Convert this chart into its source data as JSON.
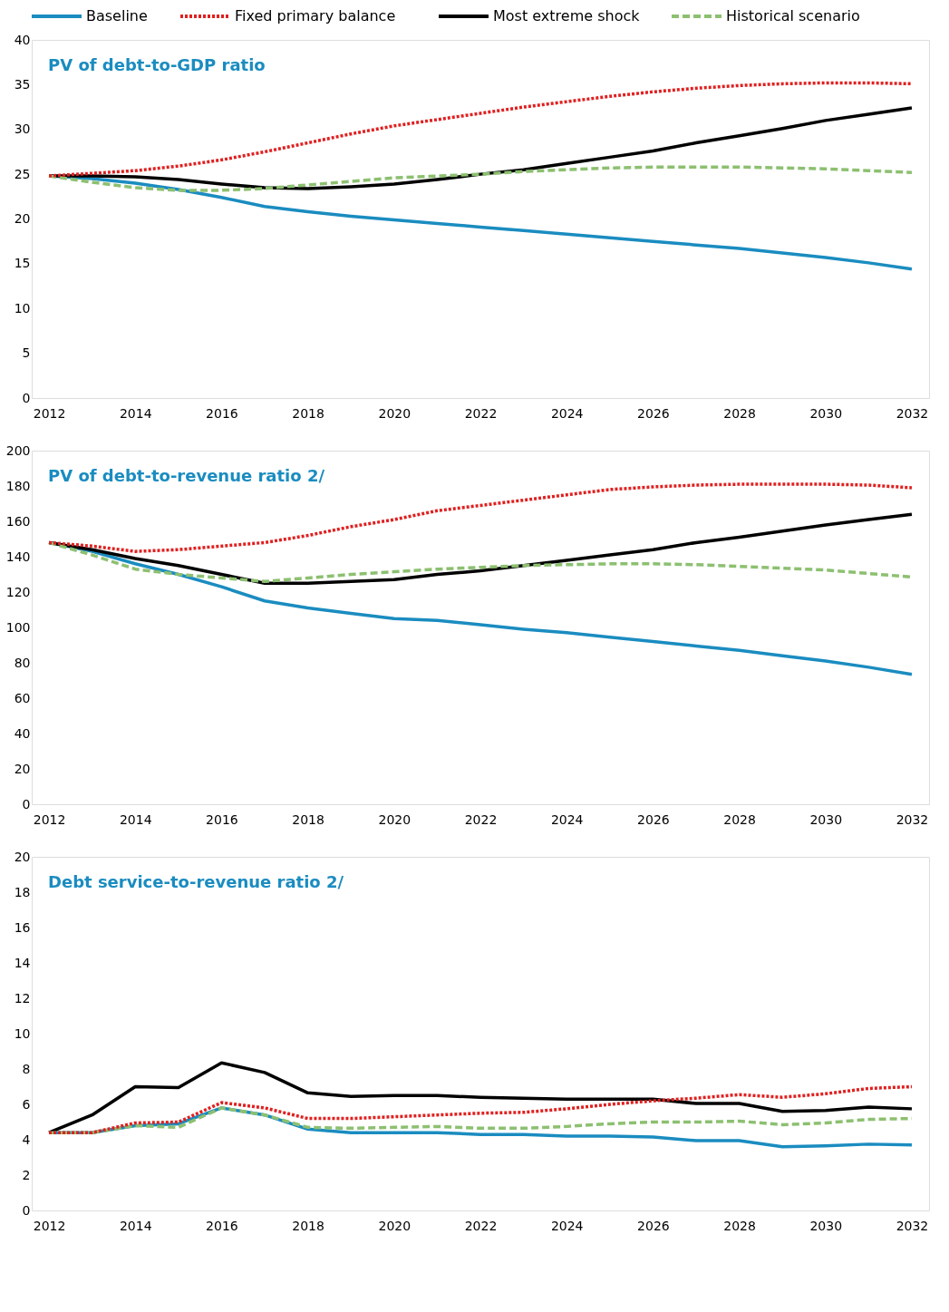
{
  "chart_data": [
    {
      "type": "line",
      "title": "PV of debt-to-GDP ratio",
      "categories": [
        "2012",
        null,
        "2014",
        null,
        "2016",
        null,
        "2018",
        null,
        "2020",
        null,
        "2022",
        null,
        "2024",
        null,
        "2026",
        null,
        "2028",
        null,
        "2030",
        null,
        "2032"
      ],
      "ylim": [
        0,
        40
      ],
      "yticks": [
        0,
        5,
        10,
        15,
        20,
        25,
        30,
        35,
        40
      ],
      "grid": false,
      "legend": "top",
      "marker": "none",
      "series": [
        {
          "name": "Baseline",
          "color": "#1a8cc0",
          "line_style": "solid",
          "values": [
            24.8,
            24.5,
            24.0,
            23.3,
            22.4,
            21.4,
            20.8,
            20.3,
            19.9,
            19.5,
            19.1,
            18.7,
            18.3,
            17.9,
            17.5,
            17.1,
            16.7,
            16.2,
            15.7,
            15.1,
            14.4
          ]
        },
        {
          "name": "Fixed primary balance",
          "color": "#e02020",
          "line_style": "dotted",
          "values": [
            24.8,
            25.1,
            25.4,
            25.9,
            26.6,
            27.5,
            28.5,
            29.5,
            30.4,
            31.1,
            31.8,
            32.5,
            33.1,
            33.7,
            34.2,
            34.6,
            34.9,
            35.1,
            35.2,
            35.2,
            35.1
          ]
        },
        {
          "name": "Most extreme shock",
          "color": "#000000",
          "line_style": "solid",
          "values": [
            24.8,
            24.8,
            24.7,
            24.4,
            23.9,
            23.5,
            23.4,
            23.6,
            23.9,
            24.4,
            25.0,
            25.5,
            26.2,
            26.9,
            27.6,
            28.5,
            29.3,
            30.1,
            31.0,
            31.7,
            32.4
          ]
        },
        {
          "name": "Historical scenario",
          "color": "#8cc070",
          "line_style": "dashed",
          "values": [
            24.8,
            24.1,
            23.5,
            23.2,
            23.2,
            23.4,
            23.8,
            24.2,
            24.6,
            24.8,
            25.0,
            25.3,
            25.5,
            25.7,
            25.8,
            25.8,
            25.8,
            25.7,
            25.6,
            25.4,
            25.2
          ]
        }
      ]
    },
    {
      "type": "line",
      "title": "PV of debt-to-revenue ratio 2/",
      "categories": [
        "2012",
        null,
        "2014",
        null,
        "2016",
        null,
        "2018",
        null,
        "2020",
        null,
        "2022",
        null,
        "2024",
        null,
        "2026",
        null,
        "2028",
        null,
        "2030",
        null,
        "2032"
      ],
      "ylim": [
        0,
        200
      ],
      "yticks": [
        0,
        20,
        40,
        60,
        80,
        100,
        120,
        140,
        160,
        180,
        200
      ],
      "grid": false,
      "legend": false,
      "marker": "none",
      "series": [
        {
          "color": "#1a8cc0",
          "line_style": "solid",
          "values": [
            148,
            143,
            136,
            130,
            123,
            115,
            111,
            108,
            105,
            104,
            101.5,
            99,
            97,
            94.5,
            92,
            89.5,
            87,
            84,
            81,
            77.5,
            73.5
          ]
        },
        {
          "color": "#e02020",
          "line_style": "dotted",
          "values": [
            148,
            146,
            143,
            144,
            146,
            148,
            152,
            157,
            161,
            166,
            169,
            172,
            175,
            178,
            179.5,
            180.5,
            181,
            181,
            181,
            180.5,
            179
          ]
        },
        {
          "color": "#000000",
          "line_style": "solid",
          "values": [
            148,
            144,
            139,
            135,
            130,
            125,
            125,
            126,
            127,
            130,
            132,
            135,
            138,
            141,
            144,
            148,
            151,
            154.5,
            158,
            161,
            164
          ]
        },
        {
          "color": "#8cc070",
          "line_style": "dashed",
          "values": [
            148,
            141,
            133,
            130,
            128,
            126,
            128,
            130,
            131.5,
            133,
            134,
            135,
            135.5,
            136,
            136,
            135.5,
            134.5,
            133.5,
            132.5,
            130.5,
            128.5
          ]
        }
      ]
    },
    {
      "type": "line",
      "title": "Debt service-to-revenue ratio 2/",
      "categories": [
        "2012",
        null,
        "2014",
        null,
        "2016",
        null,
        "2018",
        null,
        "2020",
        null,
        "2022",
        null,
        "2024",
        null,
        "2026",
        null,
        "2028",
        null,
        "2030",
        null,
        "2032"
      ],
      "ylim": [
        0,
        20
      ],
      "yticks": [
        0,
        2,
        4,
        6,
        8,
        10,
        12,
        14,
        16,
        18,
        20
      ],
      "grid": false,
      "legend": false,
      "marker": "none",
      "series": [
        {
          "color": "#1a8cc0",
          "line_style": "solid",
          "values": [
            4.4,
            4.4,
            4.8,
            4.9,
            5.8,
            5.4,
            4.6,
            4.4,
            4.4,
            4.4,
            4.3,
            4.3,
            4.2,
            4.2,
            4.15,
            3.95,
            3.95,
            3.6,
            3.65,
            3.75,
            3.7
          ]
        },
        {
          "color": "#e02020",
          "line_style": "dotted",
          "values": [
            4.4,
            4.4,
            4.95,
            5.0,
            6.1,
            5.8,
            5.2,
            5.2,
            5.3,
            5.4,
            5.5,
            5.55,
            5.75,
            6.0,
            6.2,
            6.35,
            6.55,
            6.4,
            6.6,
            6.9,
            7.0
          ]
        },
        {
          "color": "#000000",
          "line_style": "solid",
          "values": [
            4.4,
            5.4,
            7.0,
            6.95,
            8.35,
            7.8,
            6.65,
            6.45,
            6.5,
            6.5,
            6.4,
            6.35,
            6.3,
            6.3,
            6.3,
            6.05,
            6.05,
            5.6,
            5.65,
            5.85,
            5.75
          ]
        },
        {
          "color": "#8cc070",
          "line_style": "dashed",
          "values": [
            4.4,
            4.4,
            4.8,
            4.7,
            5.8,
            5.4,
            4.7,
            4.65,
            4.7,
            4.75,
            4.65,
            4.65,
            4.75,
            4.9,
            5.0,
            5.0,
            5.05,
            4.85,
            4.95,
            5.15,
            5.2
          ]
        }
      ]
    }
  ]
}
